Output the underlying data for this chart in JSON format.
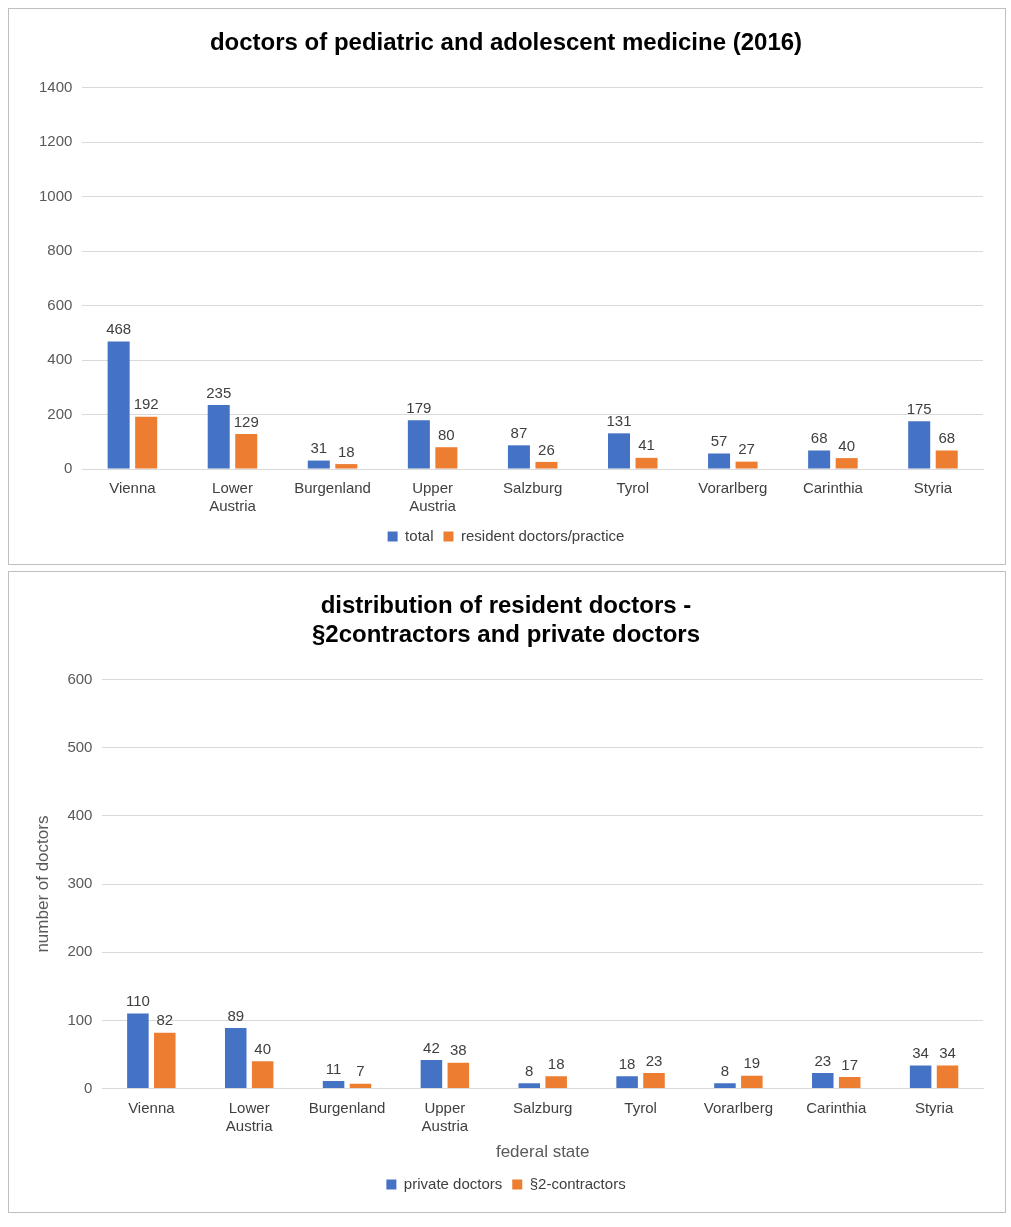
{
  "chart_data": [
    {
      "type": "bar",
      "title": "doctors of pediatric and adolescent medicine (2016)",
      "categories": [
        "Vienna",
        "Lower Austria",
        "Burgenland",
        "Upper Austria",
        "Salzburg",
        "Tyrol",
        "Vorarlberg",
        "Carinthia",
        "Styria"
      ],
      "series": [
        {
          "name": "total",
          "color": "#4472c4",
          "values": [
            468,
            235,
            31,
            179,
            87,
            131,
            57,
            68,
            175
          ]
        },
        {
          "name": "resident doctors/practice",
          "color": "#ed7d31",
          "values": [
            192,
            129,
            18,
            80,
            26,
            41,
            27,
            40,
            68
          ]
        }
      ],
      "ylim": [
        0,
        1400
      ],
      "yticks": [
        0,
        200,
        400,
        600,
        800,
        1000,
        1200,
        1400
      ],
      "grid": "y",
      "legend": "bottom",
      "data_labels": true
    },
    {
      "type": "bar",
      "title": "distribution of resident doctors - §2contractors and private doctors",
      "xlabel": "federal state",
      "ylabel": "number of doctors",
      "categories": [
        "Vienna",
        "Lower Austria",
        "Burgenland",
        "Upper Austria",
        "Salzburg",
        "Tyrol",
        "Vorarlberg",
        "Carinthia",
        "Styria"
      ],
      "series": [
        {
          "name": "private doctors",
          "color": "#4472c4",
          "values": [
            110,
            89,
            11,
            42,
            8,
            18,
            8,
            23,
            34
          ]
        },
        {
          "name": "§2-contractors",
          "color": "#ed7d31",
          "values": [
            82,
            40,
            7,
            38,
            18,
            23,
            19,
            17,
            34
          ]
        }
      ],
      "ylim": [
        0,
        600
      ],
      "yticks": [
        0,
        100,
        200,
        300,
        400,
        500,
        600
      ],
      "grid": "y",
      "legend": "bottom",
      "data_labels": true
    }
  ]
}
